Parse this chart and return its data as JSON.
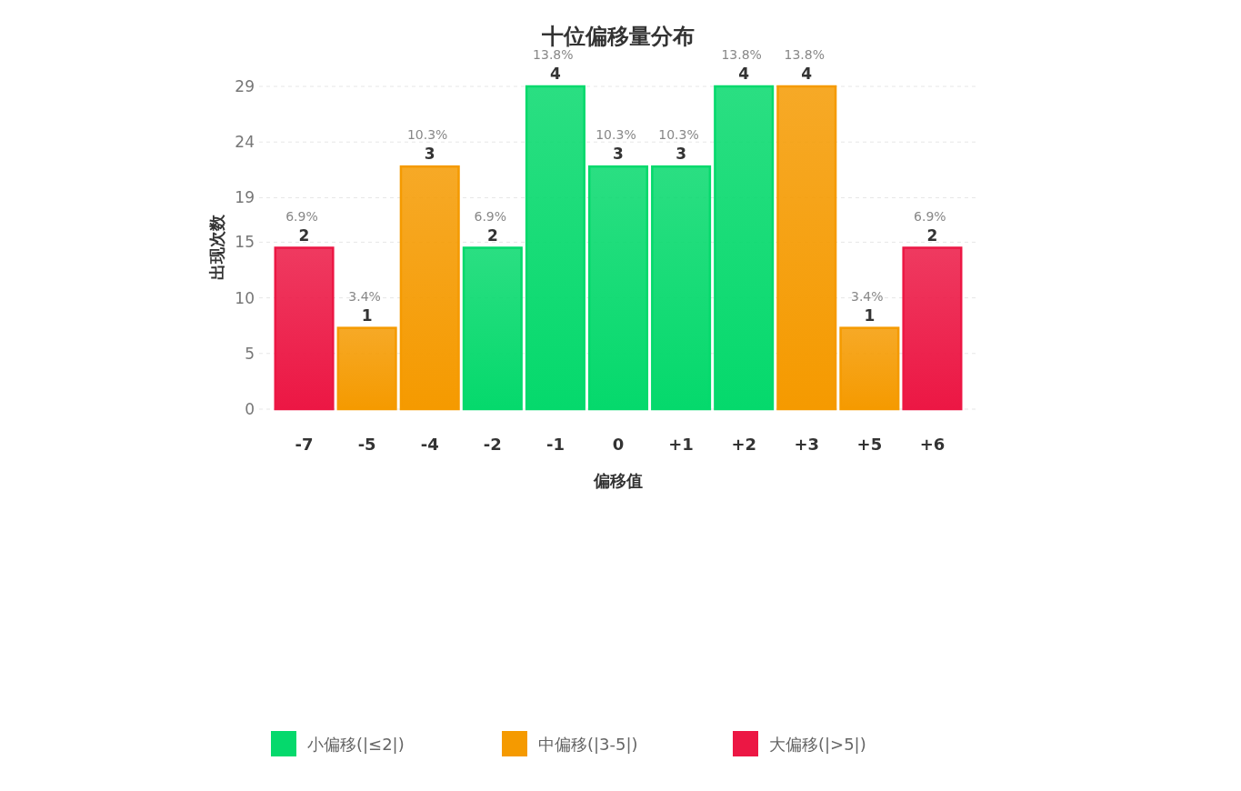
{
  "chart_data": {
    "type": "bar",
    "title": "十位偏移量分布",
    "xlabel": "偏移值",
    "ylabel": "出现次数",
    "categories": [
      "-7",
      "-5",
      "-4",
      "-2",
      "-1",
      "0",
      "+1",
      "+2",
      "+3",
      "+5",
      "+6"
    ],
    "series": [
      {
        "name": "小偏移(|≤2|)",
        "color": "#05d96c",
        "values": [
          null,
          null,
          null,
          14.5,
          29,
          21.8,
          21.8,
          29,
          null,
          null,
          null
        ]
      },
      {
        "name": "中偏移(|3-5|)",
        "color": "#f59a00",
        "values": [
          null,
          7.3,
          21.8,
          null,
          null,
          null,
          null,
          null,
          29,
          7.3,
          null
        ]
      },
      {
        "name": "大偏移(|>5|)",
        "color": "#ec1744",
        "values": [
          14.5,
          null,
          null,
          null,
          null,
          null,
          null,
          null,
          null,
          null,
          14.5
        ]
      }
    ],
    "annotations": [
      {
        "text": "6.9%\n2",
        "x": "-7",
        "y": 14.5
      },
      {
        "text": "3.4%\n1",
        "x": "-5",
        "y": 7.3
      },
      {
        "text": "10.3%\n3",
        "x": "-4",
        "y": 21.8
      },
      {
        "text": "6.9%\n2",
        "x": "-2",
        "y": 14.5
      },
      {
        "text": "13.8%\n4",
        "x": "-1",
        "y": 29
      },
      {
        "text": "10.3%\n3",
        "x": "0",
        "y": 21.8
      },
      {
        "text": "10.3%\n3",
        "x": "+1",
        "y": 21.8
      },
      {
        "text": "13.8%\n4",
        "x": "+2",
        "y": 29
      },
      {
        "text": "13.8%\n4",
        "x": "+3",
        "y": 29
      },
      {
        "text": "3.4%\n1",
        "x": "+5",
        "y": 7.3
      },
      {
        "text": "6.9%\n2",
        "x": "+6",
        "y": 14.5
      }
    ],
    "ylim": [
      0,
      29
    ],
    "yticks": [
      0,
      5,
      10,
      15,
      19,
      24,
      29
    ],
    "grid": "y",
    "legend": "bottom"
  }
}
